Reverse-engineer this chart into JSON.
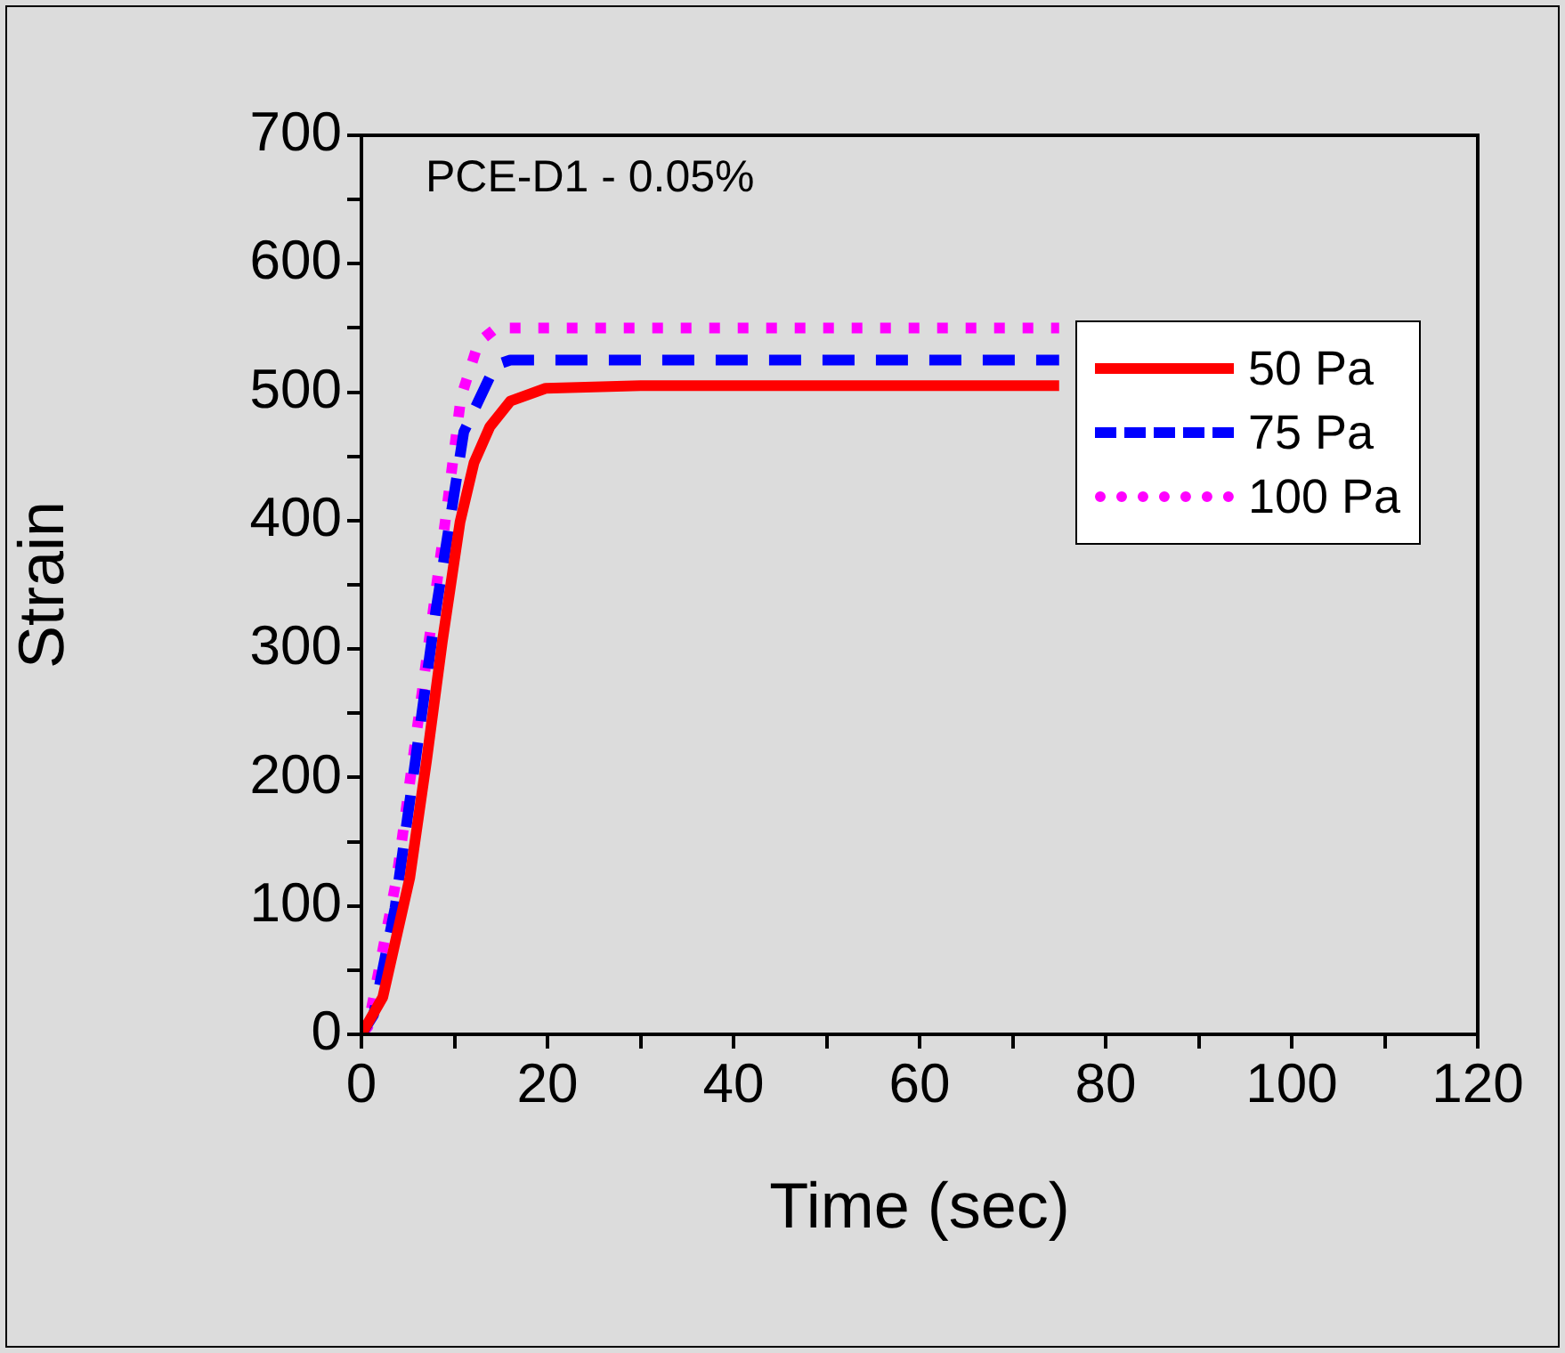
{
  "chart_data": {
    "type": "line",
    "xlabel": "Time (sec)",
    "ylabel": "Strain",
    "annotations": [
      "PCE-D1 - 0.05%"
    ],
    "xlim": [
      0,
      120
    ],
    "xticks": [
      0,
      {
        "value": 10,
        "label": null
      },
      20,
      {
        "value": 30,
        "label": null
      },
      40,
      {
        "value": 50,
        "label": null
      },
      60,
      {
        "value": 70,
        "label": null
      },
      80,
      {
        "value": 90,
        "label": null
      },
      100,
      {
        "value": 110,
        "label": null
      },
      120
    ],
    "ylim": [
      0,
      700
    ],
    "yticks": [
      0,
      {
        "value": 50,
        "label": null
      },
      100,
      {
        "value": 150,
        "label": null
      },
      200,
      {
        "value": 250,
        "label": null
      },
      300,
      {
        "value": 350,
        "label": null
      },
      400,
      {
        "value": 450,
        "label": null
      },
      500,
      {
        "value": 550,
        "label": null
      },
      600,
      {
        "value": 650,
        "label": null
      },
      700
    ],
    "grid": false,
    "legend": "top right",
    "marker": "none",
    "series": [
      {
        "name": "50 Pa",
        "color": "#ff0000",
        "line_style": "solid",
        "x": [
          0,
          2.3,
          5.2,
          7.0,
          8.7,
          10.6,
          12.1,
          13.8,
          16.0,
          19.8,
          30,
          75
        ],
        "values": [
          0,
          29,
          122,
          213,
          306,
          399,
          445,
          473,
          493,
          503,
          505,
          505
        ]
      },
      {
        "name": "75 Pa",
        "color": "#0000ff",
        "line_style": "dashed",
        "x": [
          0,
          1.3,
          3.6,
          5.8,
          8.0,
          9.5,
          11.0,
          14.4,
          16.0,
          75
        ],
        "values": [
          0,
          15,
          98,
          213,
          330,
          399,
          469,
          521,
          525,
          525
        ]
      },
      {
        "name": "100 Pa",
        "color": "#ff00ff",
        "line_style": "dotted",
        "x": [
          0,
          0.7,
          3.8,
          6.4,
          9.0,
          10.7,
          12.6,
          14.5,
          75
        ],
        "values": [
          0,
          6,
          122,
          260,
          399,
          496,
          539,
          550,
          550
        ]
      }
    ]
  }
}
